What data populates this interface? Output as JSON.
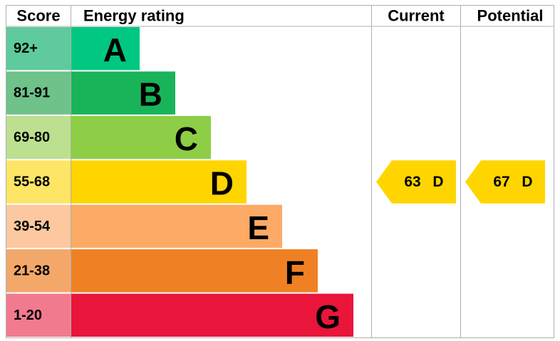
{
  "chart_data": {
    "type": "epc",
    "headers": {
      "score": "Score",
      "rating": "Energy rating",
      "current": "Current",
      "potential": "Potential"
    },
    "bands": [
      {
        "score": "92+",
        "rating": "A",
        "color": "#00c781",
        "score_color": "#5fca9e"
      },
      {
        "score": "81-91",
        "rating": "B",
        "color": "#19b459",
        "score_color": "#6ec28a"
      },
      {
        "score": "69-80",
        "rating": "C",
        "color": "#8dce46",
        "score_color": "#bce08f"
      },
      {
        "score": "55-68",
        "rating": "D",
        "color": "#ffd500",
        "score_color": "#ffe566"
      },
      {
        "score": "39-54",
        "rating": "E",
        "color": "#fcaa65",
        "score_color": "#fdc8a0"
      },
      {
        "score": "21-38",
        "rating": "F",
        "color": "#ef8023",
        "score_color": "#f3a86a"
      },
      {
        "score": "1-20",
        "rating": "G",
        "color": "#e9153b",
        "score_color": "#f27a8f"
      }
    ],
    "current": {
      "value": 63,
      "rating": "D"
    },
    "potential": {
      "value": 67,
      "rating": "D"
    }
  }
}
